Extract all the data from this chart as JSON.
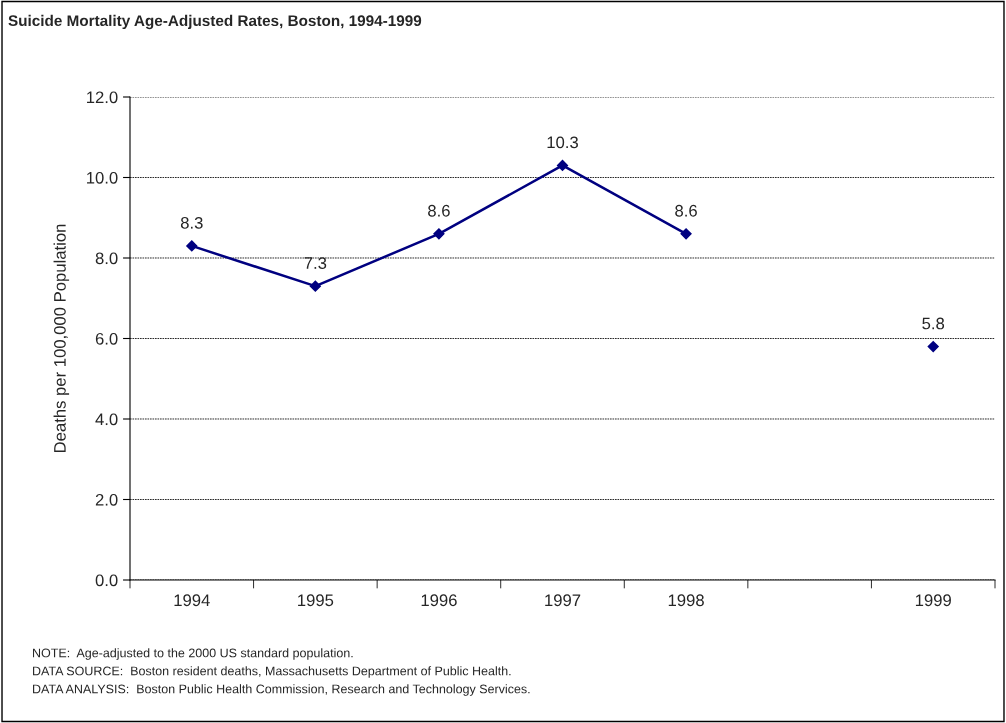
{
  "chart_data": {
    "type": "line",
    "title": "Suicide Mortality Age-Adjusted Rates, Boston, 1994-1999",
    "ylabel": "Deaths per 100,000 Population",
    "categories": [
      "1994",
      "1995",
      "1996",
      "1997",
      "1998",
      null,
      "1999"
    ],
    "series": [
      {
        "color": "#000080",
        "values": [
          8.3,
          7.3,
          8.6,
          10.3,
          8.6,
          null,
          5.8
        ]
      }
    ],
    "ylim": [
      0,
      12
    ],
    "yticks": [
      {
        "value": 0,
        "label": "0.0"
      },
      {
        "value": 2,
        "label": "2.0"
      },
      {
        "value": 4,
        "label": "4.0"
      },
      {
        "value": 6,
        "label": "6.0"
      },
      {
        "value": 8,
        "label": "8.0"
      },
      {
        "value": 10,
        "label": "10.0"
      },
      {
        "value": 12,
        "label": "12.0"
      }
    ],
    "grid": "y",
    "marker": "diamond",
    "line_style": "solid",
    "data_labels": true,
    "legend": false,
    "annotations": [
      "NOTE:  Age-adjusted to the 2000 US standard population.",
      "DATA SOURCE:  Boston resident deaths, Massachusetts Department of Public Health.",
      "DATA ANALYSIS:  Boston Public Health Commission, Research and Technology Services."
    ]
  }
}
